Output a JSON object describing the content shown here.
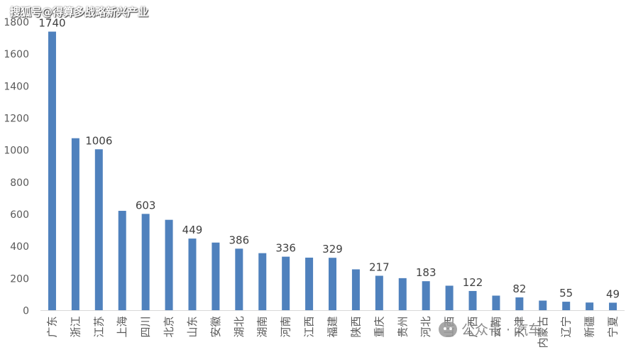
{
  "watermark": "搜狐号@得算多战略新兴产业",
  "wechat_watermark": "公众号 · 汽车",
  "chart_data": {
    "type": "bar",
    "title": "",
    "xlabel": "",
    "ylabel": "",
    "ylim": [
      0,
      1800
    ],
    "yticks": [
      0,
      200,
      400,
      600,
      800,
      1000,
      1200,
      1400,
      1600,
      1800
    ],
    "grid": false,
    "bar_color": "#4f81bd",
    "categories": [
      "广东",
      "浙江",
      "江苏",
      "上海",
      "四川",
      "北京",
      "山东",
      "安徽",
      "湖北",
      "湖南",
      "河南",
      "江西",
      "福建",
      "陕西",
      "重庆",
      "贵州",
      "河北",
      "山西",
      "广西",
      "云南",
      "天津",
      "内蒙古",
      "辽宁",
      "新疆",
      "宁夏"
    ],
    "values": [
      1740,
      1075,
      1006,
      622,
      603,
      566,
      449,
      424,
      386,
      358,
      336,
      330,
      329,
      257,
      217,
      202,
      183,
      155,
      122,
      93,
      82,
      62,
      55,
      50,
      49
    ],
    "data_labels": {
      "0": "1740",
      "2": "1006",
      "4": "603",
      "6": "449",
      "8": "386",
      "10": "336",
      "12": "329",
      "14": "217",
      "16": "183",
      "18": "122",
      "20": "82",
      "22": "55",
      "24": "49"
    }
  }
}
